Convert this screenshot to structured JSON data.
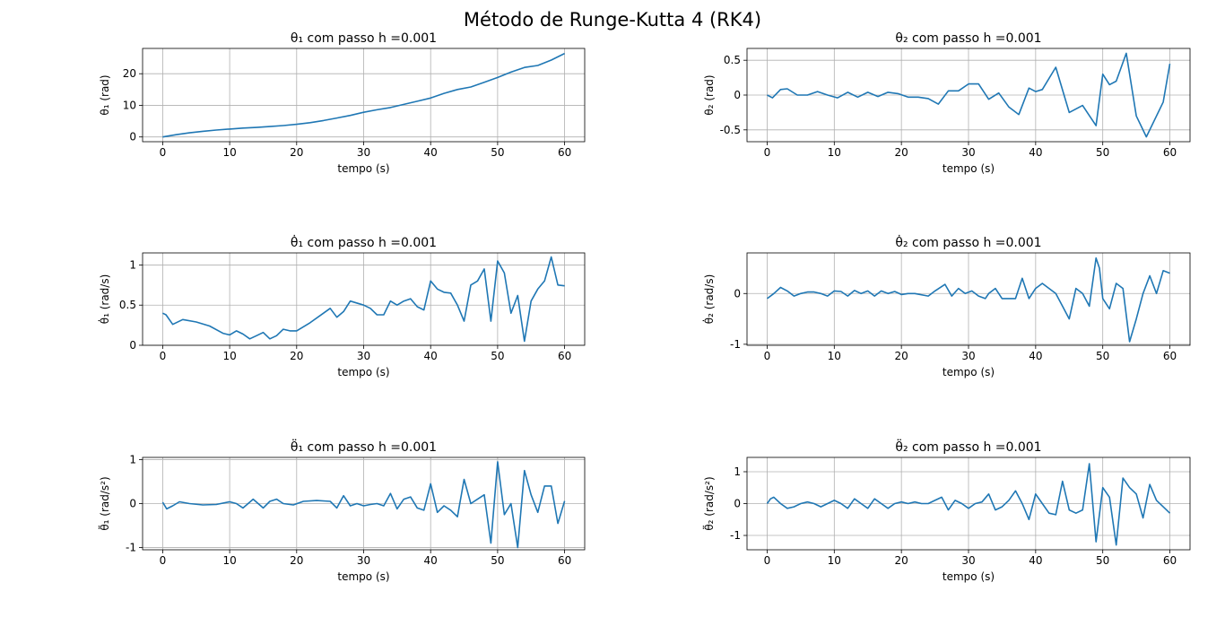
{
  "figure": {
    "title": "Método de Runge-Kutta 4 (RK4)"
  },
  "colors": {
    "line": "#1f77b4",
    "grid": "#b0b0b0",
    "axes": "#000000"
  },
  "chart_data": [
    {
      "type": "line",
      "title": "θ₁ com passo h =0.001",
      "xlabel": "tempo (s)",
      "ylabel": "θ₁ (rad)",
      "xlim": [
        -3,
        63
      ],
      "ylim": [
        -1.5,
        28
      ],
      "xticks": [
        0,
        10,
        20,
        30,
        40,
        50,
        60
      ],
      "yticks": [
        0,
        10,
        20
      ],
      "grid": true,
      "series": [
        {
          "x": [
            0,
            2,
            4,
            6,
            8,
            10,
            12,
            14,
            16,
            18,
            20,
            22,
            24,
            26,
            28,
            30,
            32,
            34,
            36,
            38,
            40,
            42,
            44,
            46,
            48,
            50,
            52,
            54,
            56,
            58,
            60
          ],
          "y": [
            0,
            0.7,
            1.3,
            1.8,
            2.2,
            2.5,
            2.8,
            3.0,
            3.3,
            3.6,
            4.0,
            4.5,
            5.2,
            6.0,
            6.8,
            7.8,
            8.6,
            9.3,
            10.3,
            11.3,
            12.3,
            13.8,
            15.0,
            15.8,
            17.3,
            18.8,
            20.5,
            22.0,
            22.6,
            24.3,
            26.4
          ]
        }
      ]
    },
    {
      "type": "line",
      "title": "θ₂ com passo h =0.001",
      "xlabel": "tempo (s)",
      "ylabel": "θ₂ (rad)",
      "xlim": [
        -3,
        63
      ],
      "ylim": [
        -0.67,
        0.67
      ],
      "xticks": [
        0,
        10,
        20,
        30,
        40,
        50,
        60
      ],
      "yticks": [
        -0.5,
        0.0,
        0.5
      ],
      "grid": true,
      "series": [
        {
          "x": [
            0,
            0.8,
            2,
            3,
            4.5,
            6,
            7.5,
            9,
            10.5,
            12,
            13.5,
            15,
            16.5,
            18,
            19.5,
            21,
            22.5,
            24,
            25.5,
            27,
            28.5,
            30,
            31.5,
            33,
            34.5,
            36,
            37.5,
            39,
            40,
            41,
            43,
            45,
            47,
            49,
            50,
            51,
            52,
            53.5,
            55,
            56.5,
            58,
            59,
            60
          ],
          "y": [
            0,
            -0.04,
            0.08,
            0.09,
            0.0,
            0.0,
            0.05,
            0.0,
            -0.04,
            0.04,
            -0.03,
            0.04,
            -0.02,
            0.04,
            0.02,
            -0.03,
            -0.03,
            -0.05,
            -0.13,
            0.06,
            0.06,
            0.16,
            0.16,
            -0.06,
            0.03,
            -0.17,
            -0.28,
            0.1,
            0.05,
            0.08,
            0.4,
            -0.25,
            -0.15,
            -0.44,
            0.3,
            0.15,
            0.2,
            0.6,
            -0.3,
            -0.6,
            -0.3,
            -0.1,
            0.45
          ]
        }
      ]
    },
    {
      "type": "line",
      "title": "θ̇₁ com passo h =0.001",
      "xlabel": "tempo (s)",
      "ylabel": "θ̇₁ (rad/s)",
      "xlim": [
        -3,
        63
      ],
      "ylim": [
        0,
        1.15
      ],
      "xticks": [
        0,
        10,
        20,
        30,
        40,
        50,
        60
      ],
      "yticks": [
        0.0,
        0.5,
        1.0
      ],
      "grid": true,
      "series": [
        {
          "x": [
            0,
            0.5,
            1.5,
            3,
            5,
            7,
            9,
            10,
            11,
            12,
            13,
            14,
            15,
            16,
            17,
            18,
            19,
            20,
            22,
            24,
            25,
            26,
            27,
            28,
            30,
            31,
            32,
            33,
            34,
            35,
            36,
            37,
            38,
            39,
            40,
            41,
            42,
            43,
            44,
            45,
            46,
            47,
            48,
            49,
            50,
            51,
            52,
            53,
            54,
            55,
            56,
            57,
            58,
            59,
            60
          ],
          "y": [
            0.4,
            0.38,
            0.26,
            0.32,
            0.29,
            0.24,
            0.15,
            0.13,
            0.18,
            0.14,
            0.08,
            0.12,
            0.16,
            0.08,
            0.12,
            0.2,
            0.18,
            0.18,
            0.28,
            0.4,
            0.46,
            0.35,
            0.42,
            0.55,
            0.5,
            0.46,
            0.38,
            0.38,
            0.55,
            0.5,
            0.55,
            0.58,
            0.48,
            0.44,
            0.8,
            0.7,
            0.66,
            0.65,
            0.5,
            0.3,
            0.75,
            0.8,
            0.95,
            0.3,
            1.05,
            0.9,
            0.4,
            0.62,
            0.05,
            0.55,
            0.7,
            0.8,
            1.1,
            0.75,
            0.74
          ]
        }
      ]
    },
    {
      "type": "line",
      "title": "θ̇₂ com passo h =0.001",
      "xlabel": "tempo (s)",
      "ylabel": "θ̇₂ (rad/s)",
      "xlim": [
        -3,
        63
      ],
      "ylim": [
        -1.02,
        0.8
      ],
      "xticks": [
        0,
        10,
        20,
        30,
        40,
        50,
        60
      ],
      "yticks": [
        -1,
        0
      ],
      "grid": true,
      "series": [
        {
          "x": [
            0,
            1,
            2,
            3,
            4,
            5,
            6,
            7,
            8,
            9,
            10,
            11,
            12,
            13,
            14,
            15,
            16,
            17,
            18,
            19,
            20,
            21,
            22,
            24,
            25,
            26.5,
            27.5,
            28.5,
            29.5,
            30.5,
            31.5,
            32.5,
            33,
            34,
            35,
            37,
            38,
            39,
            40,
            41,
            42,
            43,
            44,
            45,
            46,
            47,
            48,
            49,
            49.5,
            50,
            51,
            52,
            53,
            54,
            55,
            56,
            57,
            58,
            59,
            60
          ],
          "y": [
            -0.1,
            0.0,
            0.12,
            0.05,
            -0.05,
            0.0,
            0.03,
            0.03,
            0.0,
            -0.05,
            0.05,
            0.04,
            -0.05,
            0.06,
            0.0,
            0.05,
            -0.05,
            0.05,
            0.0,
            0.04,
            -0.02,
            0.0,
            0.0,
            -0.05,
            0.05,
            0.18,
            -0.05,
            0.1,
            0.0,
            0.05,
            -0.05,
            -0.1,
            0.0,
            0.1,
            -0.1,
            -0.1,
            0.3,
            -0.1,
            0.1,
            0.2,
            0.1,
            0.0,
            -0.25,
            -0.5,
            0.1,
            0.0,
            -0.25,
            0.7,
            0.5,
            -0.1,
            -0.3,
            0.2,
            0.1,
            -0.95,
            -0.5,
            0.0,
            0.35,
            0.0,
            0.45,
            0.4
          ]
        }
      ]
    },
    {
      "type": "line",
      "title": "θ̈₁ com passo h =0.001",
      "xlabel": "tempo (s)",
      "ylabel": "θ̈₁ (rad/s²)",
      "xlim": [
        -3,
        63
      ],
      "ylim": [
        -1.05,
        1.05
      ],
      "xticks": [
        0,
        10,
        20,
        30,
        40,
        50,
        60
      ],
      "yticks": [
        -1,
        0,
        1
      ],
      "grid": true,
      "series": [
        {
          "x": [
            0,
            0.6,
            1.5,
            2.5,
            4,
            6,
            8,
            10,
            11,
            12,
            13.5,
            15,
            16,
            17,
            18,
            19.5,
            21,
            23,
            25,
            26,
            27,
            28,
            29,
            30,
            31,
            32,
            33,
            34,
            35,
            36,
            37,
            38,
            39,
            40,
            41,
            42,
            43,
            44,
            45,
            46,
            47,
            48,
            49,
            50,
            51,
            52,
            53,
            54,
            55,
            56,
            57,
            58,
            59,
            60
          ],
          "y": [
            0.03,
            -0.12,
            -0.05,
            0.04,
            0.0,
            -0.03,
            -0.02,
            0.04,
            0.0,
            -0.1,
            0.1,
            -0.1,
            0.05,
            0.1,
            0.0,
            -0.03,
            0.05,
            0.07,
            0.05,
            -0.1,
            0.18,
            -0.05,
            0.0,
            -0.05,
            -0.02,
            0.0,
            -0.05,
            0.23,
            -0.12,
            0.1,
            0.15,
            -0.1,
            -0.15,
            0.45,
            -0.2,
            -0.05,
            -0.15,
            -0.3,
            0.55,
            0.0,
            0.1,
            0.2,
            -0.9,
            0.95,
            -0.25,
            0.0,
            -1.0,
            0.75,
            0.2,
            -0.2,
            0.4,
            0.4,
            -0.45,
            0.06
          ]
        }
      ]
    },
    {
      "type": "line",
      "title": "θ̈₂ com passo h =0.001",
      "xlabel": "tempo (s)",
      "ylabel": "θ̈₂ (rad/s²)",
      "xlim": [
        -3,
        63
      ],
      "ylim": [
        -1.45,
        1.45
      ],
      "xticks": [
        0,
        10,
        20,
        30,
        40,
        50,
        60
      ],
      "yticks": [
        -1,
        0,
        1
      ],
      "grid": true,
      "series": [
        {
          "x": [
            0,
            0.5,
            1,
            2,
            3,
            4,
            5,
            6,
            7,
            8,
            9,
            10,
            11,
            12,
            13,
            14,
            15,
            16,
            17,
            18,
            19,
            20,
            21,
            22,
            23,
            24,
            25,
            26,
            27,
            28,
            29,
            30,
            31,
            32,
            33,
            34,
            35,
            36,
            37,
            38,
            39,
            40,
            41,
            42,
            43,
            44,
            45,
            46,
            47,
            48,
            49,
            50,
            51,
            52,
            53,
            54,
            55,
            56,
            57,
            58,
            59,
            60
          ],
          "y": [
            0.0,
            0.15,
            0.2,
            0.0,
            -0.15,
            -0.1,
            0.0,
            0.05,
            0.0,
            -0.1,
            0.0,
            0.1,
            0.0,
            -0.15,
            0.15,
            0.0,
            -0.15,
            0.15,
            0.0,
            -0.15,
            0.0,
            0.05,
            0.0,
            0.05,
            0.0,
            0.0,
            0.1,
            0.2,
            -0.2,
            0.1,
            0.0,
            -0.15,
            0.0,
            0.05,
            0.3,
            -0.2,
            -0.1,
            0.1,
            0.4,
            0.0,
            -0.5,
            0.3,
            0.0,
            -0.3,
            -0.35,
            0.7,
            -0.2,
            -0.3,
            -0.2,
            1.25,
            -1.2,
            0.5,
            0.2,
            -1.3,
            0.8,
            0.5,
            0.3,
            -0.45,
            0.6,
            0.1,
            -0.1,
            -0.3
          ]
        }
      ]
    }
  ]
}
